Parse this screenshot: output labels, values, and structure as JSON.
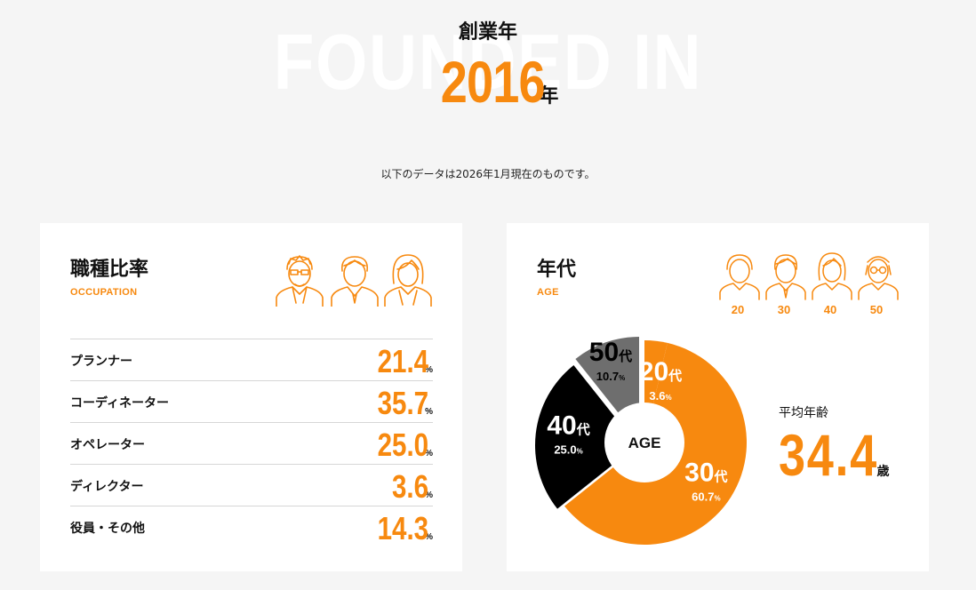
{
  "founded": {
    "bg_text": "FOUNDED IN",
    "label": "創業年",
    "year": "2016",
    "year_unit": "年"
  },
  "note": "以下のデータは2026年1月現在のものです。",
  "occupation": {
    "title": "職種比率",
    "subtitle": "OCCUPATION",
    "rows": [
      {
        "name": "プランナー",
        "value": "21.4",
        "unit": "%"
      },
      {
        "name": "コーディネーター",
        "value": "35.7",
        "unit": "%"
      },
      {
        "name": "オペレーター",
        "value": "25.0",
        "unit": "%"
      },
      {
        "name": "ディレクター",
        "value": "3.6",
        "unit": "%"
      },
      {
        "name": "役員・その他",
        "value": "14.3",
        "unit": "%"
      }
    ],
    "icons": [
      "man-glasses-icon",
      "man-icon",
      "woman-icon"
    ]
  },
  "age": {
    "title": "年代",
    "subtitle": "AGE",
    "icon_labels": [
      "20",
      "30",
      "40",
      "50"
    ],
    "icons": [
      "young-man-icon",
      "man-icon",
      "woman-icon",
      "elder-glasses-icon"
    ],
    "average_label": "平均年齢",
    "average_value": "34.4",
    "average_unit": "歳"
  },
  "chart_data": {
    "type": "pie",
    "center_label": "AGE",
    "slices": [
      {
        "label": "20代",
        "value": 3.6,
        "value_text": "3.6",
        "unit": "%",
        "color": "#f7890f"
      },
      {
        "label": "30代",
        "value": 60.7,
        "value_text": "60.7",
        "unit": "%",
        "color": "#f7890f"
      },
      {
        "label": "40代",
        "value": 25.0,
        "value_text": "25.0",
        "unit": "%",
        "color": "#000000"
      },
      {
        "label": "50代",
        "value": 10.7,
        "value_text": "10.7",
        "unit": "%",
        "color": "#6e6e6e"
      }
    ]
  },
  "colors": {
    "accent": "#f7890f",
    "background": "#f5f5f5",
    "card": "#ffffff",
    "dark": "#000000",
    "gray": "#6e6e6e"
  }
}
